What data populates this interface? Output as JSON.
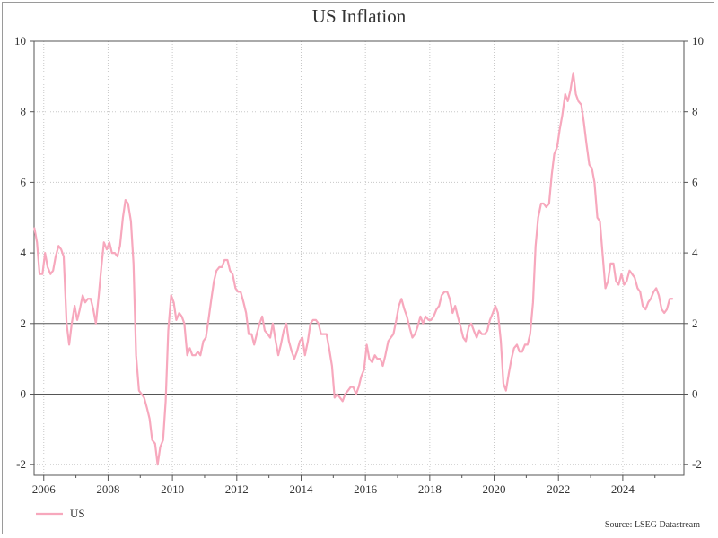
{
  "chart_data": {
    "type": "line",
    "title": "US Inflation",
    "source": "Source: LSEG Datastream",
    "xlim": [
      2005.7,
      2025.9
    ],
    "ylim": [
      -2.3,
      10
    ],
    "x_ticks": [
      2006,
      2008,
      2010,
      2012,
      2014,
      2016,
      2018,
      2020,
      2022,
      2024
    ],
    "y_ticks": [
      -2,
      0,
      2,
      4,
      6,
      8,
      10
    ],
    "reference_lines": [
      0,
      2
    ],
    "grid": true,
    "legend_position": "bottom-left",
    "series_color": "#f7a8bd",
    "series": [
      {
        "name": "US",
        "points": [
          [
            2005.71,
            4.7
          ],
          [
            2005.79,
            4.3
          ],
          [
            2005.87,
            3.4
          ],
          [
            2005.96,
            3.4
          ],
          [
            2006.04,
            4.0
          ],
          [
            2006.12,
            3.6
          ],
          [
            2006.21,
            3.4
          ],
          [
            2006.29,
            3.5
          ],
          [
            2006.37,
            3.9
          ],
          [
            2006.46,
            4.2
          ],
          [
            2006.54,
            4.1
          ],
          [
            2006.62,
            3.9
          ],
          [
            2006.71,
            2.0
          ],
          [
            2006.79,
            1.4
          ],
          [
            2006.87,
            2.0
          ],
          [
            2006.96,
            2.5
          ],
          [
            2007.04,
            2.1
          ],
          [
            2007.12,
            2.4
          ],
          [
            2007.21,
            2.8
          ],
          [
            2007.29,
            2.6
          ],
          [
            2007.37,
            2.7
          ],
          [
            2007.46,
            2.7
          ],
          [
            2007.54,
            2.4
          ],
          [
            2007.62,
            2.0
          ],
          [
            2007.71,
            2.8
          ],
          [
            2007.79,
            3.6
          ],
          [
            2007.87,
            4.3
          ],
          [
            2007.96,
            4.1
          ],
          [
            2008.04,
            4.3
          ],
          [
            2008.12,
            4.0
          ],
          [
            2008.21,
            4.0
          ],
          [
            2008.29,
            3.9
          ],
          [
            2008.37,
            4.2
          ],
          [
            2008.46,
            5.0
          ],
          [
            2008.54,
            5.5
          ],
          [
            2008.62,
            5.4
          ],
          [
            2008.71,
            4.9
          ],
          [
            2008.79,
            3.7
          ],
          [
            2008.87,
            1.1
          ],
          [
            2008.96,
            0.1
          ],
          [
            2009.04,
            0.0
          ],
          [
            2009.12,
            -0.1
          ],
          [
            2009.21,
            -0.4
          ],
          [
            2009.29,
            -0.7
          ],
          [
            2009.37,
            -1.3
          ],
          [
            2009.46,
            -1.4
          ],
          [
            2009.54,
            -2.0
          ],
          [
            2009.62,
            -1.5
          ],
          [
            2009.71,
            -1.3
          ],
          [
            2009.79,
            -0.2
          ],
          [
            2009.87,
            1.8
          ],
          [
            2009.96,
            2.8
          ],
          [
            2010.04,
            2.6
          ],
          [
            2010.12,
            2.1
          ],
          [
            2010.21,
            2.3
          ],
          [
            2010.29,
            2.2
          ],
          [
            2010.37,
            2.0
          ],
          [
            2010.46,
            1.1
          ],
          [
            2010.54,
            1.3
          ],
          [
            2010.62,
            1.1
          ],
          [
            2010.71,
            1.1
          ],
          [
            2010.79,
            1.2
          ],
          [
            2010.87,
            1.1
          ],
          [
            2010.96,
            1.5
          ],
          [
            2011.04,
            1.6
          ],
          [
            2011.12,
            2.1
          ],
          [
            2011.21,
            2.7
          ],
          [
            2011.29,
            3.2
          ],
          [
            2011.37,
            3.5
          ],
          [
            2011.46,
            3.6
          ],
          [
            2011.54,
            3.6
          ],
          [
            2011.62,
            3.8
          ],
          [
            2011.71,
            3.8
          ],
          [
            2011.79,
            3.5
          ],
          [
            2011.87,
            3.4
          ],
          [
            2011.96,
            3.0
          ],
          [
            2012.04,
            2.9
          ],
          [
            2012.12,
            2.9
          ],
          [
            2012.21,
            2.6
          ],
          [
            2012.29,
            2.3
          ],
          [
            2012.37,
            1.7
          ],
          [
            2012.46,
            1.7
          ],
          [
            2012.54,
            1.4
          ],
          [
            2012.62,
            1.7
          ],
          [
            2012.71,
            2.0
          ],
          [
            2012.79,
            2.2
          ],
          [
            2012.87,
            1.8
          ],
          [
            2012.96,
            1.7
          ],
          [
            2013.04,
            1.6
          ],
          [
            2013.12,
            2.0
          ],
          [
            2013.21,
            1.5
          ],
          [
            2013.29,
            1.1
          ],
          [
            2013.37,
            1.4
          ],
          [
            2013.46,
            1.8
          ],
          [
            2013.54,
            2.0
          ],
          [
            2013.62,
            1.5
          ],
          [
            2013.71,
            1.2
          ],
          [
            2013.79,
            1.0
          ],
          [
            2013.87,
            1.2
          ],
          [
            2013.96,
            1.5
          ],
          [
            2014.04,
            1.6
          ],
          [
            2014.12,
            1.1
          ],
          [
            2014.21,
            1.5
          ],
          [
            2014.29,
            2.0
          ],
          [
            2014.37,
            2.1
          ],
          [
            2014.46,
            2.1
          ],
          [
            2014.54,
            2.0
          ],
          [
            2014.62,
            1.7
          ],
          [
            2014.71,
            1.7
          ],
          [
            2014.79,
            1.7
          ],
          [
            2014.87,
            1.3
          ],
          [
            2014.96,
            0.8
          ],
          [
            2015.04,
            -0.1
          ],
          [
            2015.12,
            0.0
          ],
          [
            2015.21,
            -0.1
          ],
          [
            2015.29,
            -0.2
          ],
          [
            2015.37,
            0.0
          ],
          [
            2015.46,
            0.1
          ],
          [
            2015.54,
            0.2
          ],
          [
            2015.62,
            0.2
          ],
          [
            2015.71,
            0.0
          ],
          [
            2015.79,
            0.2
          ],
          [
            2015.87,
            0.5
          ],
          [
            2015.96,
            0.7
          ],
          [
            2016.04,
            1.4
          ],
          [
            2016.12,
            1.0
          ],
          [
            2016.21,
            0.9
          ],
          [
            2016.29,
            1.1
          ],
          [
            2016.37,
            1.0
          ],
          [
            2016.46,
            1.0
          ],
          [
            2016.54,
            0.8
          ],
          [
            2016.62,
            1.1
          ],
          [
            2016.71,
            1.5
          ],
          [
            2016.79,
            1.6
          ],
          [
            2016.87,
            1.7
          ],
          [
            2016.96,
            2.1
          ],
          [
            2017.04,
            2.5
          ],
          [
            2017.12,
            2.7
          ],
          [
            2017.21,
            2.4
          ],
          [
            2017.29,
            2.2
          ],
          [
            2017.37,
            1.9
          ],
          [
            2017.46,
            1.6
          ],
          [
            2017.54,
            1.7
          ],
          [
            2017.62,
            1.9
          ],
          [
            2017.71,
            2.2
          ],
          [
            2017.79,
            2.0
          ],
          [
            2017.87,
            2.2
          ],
          [
            2017.96,
            2.1
          ],
          [
            2018.04,
            2.1
          ],
          [
            2018.12,
            2.2
          ],
          [
            2018.21,
            2.4
          ],
          [
            2018.29,
            2.5
          ],
          [
            2018.37,
            2.8
          ],
          [
            2018.46,
            2.9
          ],
          [
            2018.54,
            2.9
          ],
          [
            2018.62,
            2.7
          ],
          [
            2018.71,
            2.3
          ],
          [
            2018.79,
            2.5
          ],
          [
            2018.87,
            2.2
          ],
          [
            2018.96,
            1.9
          ],
          [
            2019.04,
            1.6
          ],
          [
            2019.12,
            1.5
          ],
          [
            2019.21,
            1.9
          ],
          [
            2019.29,
            2.0
          ],
          [
            2019.37,
            1.8
          ],
          [
            2019.46,
            1.6
          ],
          [
            2019.54,
            1.8
          ],
          [
            2019.62,
            1.7
          ],
          [
            2019.71,
            1.7
          ],
          [
            2019.79,
            1.8
          ],
          [
            2019.87,
            2.1
          ],
          [
            2019.96,
            2.3
          ],
          [
            2020.04,
            2.5
          ],
          [
            2020.12,
            2.3
          ],
          [
            2020.21,
            1.5
          ],
          [
            2020.29,
            0.3
          ],
          [
            2020.37,
            0.1
          ],
          [
            2020.46,
            0.6
          ],
          [
            2020.54,
            1.0
          ],
          [
            2020.62,
            1.3
          ],
          [
            2020.71,
            1.4
          ],
          [
            2020.79,
            1.2
          ],
          [
            2020.87,
            1.2
          ],
          [
            2020.96,
            1.4
          ],
          [
            2021.04,
            1.4
          ],
          [
            2021.12,
            1.7
          ],
          [
            2021.21,
            2.6
          ],
          [
            2021.29,
            4.2
          ],
          [
            2021.37,
            5.0
          ],
          [
            2021.46,
            5.4
          ],
          [
            2021.54,
            5.4
          ],
          [
            2021.62,
            5.3
          ],
          [
            2021.71,
            5.4
          ],
          [
            2021.79,
            6.2
          ],
          [
            2021.87,
            6.8
          ],
          [
            2021.96,
            7.0
          ],
          [
            2022.04,
            7.5
          ],
          [
            2022.12,
            7.9
          ],
          [
            2022.21,
            8.5
          ],
          [
            2022.29,
            8.3
          ],
          [
            2022.37,
            8.6
          ],
          [
            2022.46,
            9.1
          ],
          [
            2022.54,
            8.5
          ],
          [
            2022.62,
            8.3
          ],
          [
            2022.71,
            8.2
          ],
          [
            2022.79,
            7.7
          ],
          [
            2022.87,
            7.1
          ],
          [
            2022.96,
            6.5
          ],
          [
            2023.04,
            6.4
          ],
          [
            2023.12,
            6.0
          ],
          [
            2023.21,
            5.0
          ],
          [
            2023.29,
            4.9
          ],
          [
            2023.37,
            4.0
          ],
          [
            2023.46,
            3.0
          ],
          [
            2023.54,
            3.2
          ],
          [
            2023.62,
            3.7
          ],
          [
            2023.71,
            3.7
          ],
          [
            2023.79,
            3.2
          ],
          [
            2023.87,
            3.1
          ],
          [
            2023.96,
            3.4
          ],
          [
            2024.04,
            3.1
          ],
          [
            2024.12,
            3.2
          ],
          [
            2024.21,
            3.5
          ],
          [
            2024.29,
            3.4
          ],
          [
            2024.37,
            3.3
          ],
          [
            2024.46,
            3.0
          ],
          [
            2024.54,
            2.9
          ],
          [
            2024.62,
            2.5
          ],
          [
            2024.71,
            2.4
          ],
          [
            2024.79,
            2.6
          ],
          [
            2024.87,
            2.7
          ],
          [
            2024.96,
            2.9
          ],
          [
            2025.04,
            3.0
          ],
          [
            2025.12,
            2.8
          ],
          [
            2025.21,
            2.4
          ],
          [
            2025.29,
            2.3
          ],
          [
            2025.37,
            2.4
          ],
          [
            2025.46,
            2.7
          ],
          [
            2025.54,
            2.7
          ]
        ]
      }
    ]
  }
}
